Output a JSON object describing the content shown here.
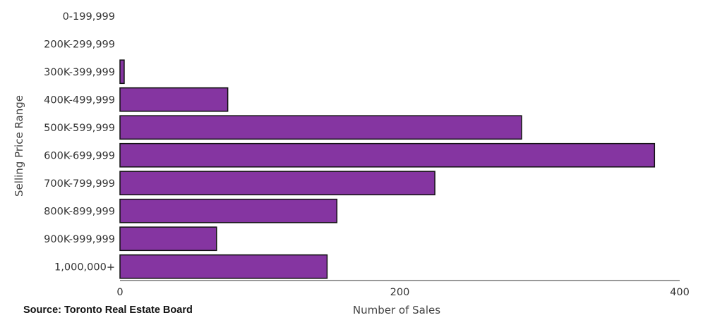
{
  "chart_data": {
    "type": "bar",
    "orientation": "horizontal",
    "categories": [
      "0-199,999",
      "200K-299,999",
      "300K-399,999",
      "400K-499,999",
      "500K-599,999",
      "600K-699,999",
      "700K-799,999",
      "800K-899,999",
      "900K-999,999",
      "1,000,000+"
    ],
    "values": [
      0,
      0,
      3,
      77,
      287,
      382,
      225,
      155,
      69,
      148
    ],
    "xlabel": "Number of Sales",
    "ylabel": "Selling Price Range",
    "xlim": [
      0,
      400
    ],
    "xticks": [
      "0",
      "200",
      "400"
    ],
    "grid": false,
    "colors": {
      "bar": "#8535a1",
      "bar_stroke": "#111111"
    }
  },
  "source": "Source: Toronto Real Estate Board"
}
